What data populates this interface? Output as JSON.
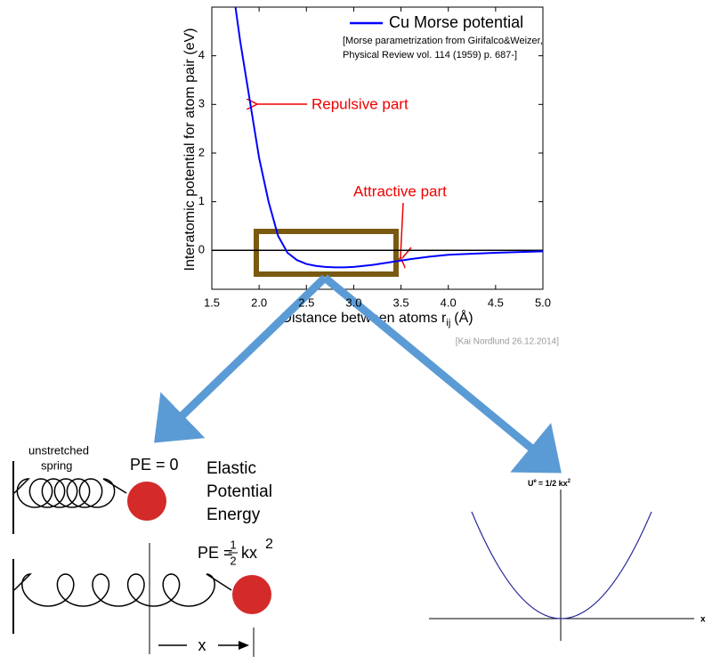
{
  "chart_data": {
    "type": "line",
    "xlabel": "Distance between atoms r",
    "xlabel_subscript": "ij",
    "xlabel_unit": "(Å)",
    "ylabel": "Interatomic potential for atom pair (eV)",
    "x": [
      1.75,
      1.8,
      1.9,
      2.0,
      2.1,
      2.2,
      2.3,
      2.4,
      2.5,
      2.6,
      2.7,
      2.8,
      2.9,
      3.0,
      3.2,
      3.4,
      3.6,
      3.8,
      4.0,
      4.5,
      5.0
    ],
    "series": [
      {
        "name": "Cu Morse potential",
        "color": "#0000ff",
        "values": [
          5.0,
          4.3,
          3.1,
          1.9,
          1.0,
          0.3,
          -0.05,
          -0.2,
          -0.28,
          -0.32,
          -0.34,
          -0.35,
          -0.35,
          -0.34,
          -0.3,
          -0.24,
          -0.18,
          -0.13,
          -0.09,
          -0.05,
          -0.02
        ]
      }
    ],
    "reference": [
      "[Morse parametrization from Girifalco&Weizer,",
      "Physical Review vol. 114 (1959) p. 687-]"
    ],
    "credit": "[Kai Nordlund 26.12.2014]",
    "annotations": [
      "Repulsive part",
      "Attractive part"
    ],
    "hline": 0,
    "xlim": [
      1.5,
      5.0
    ],
    "ylim": [
      -0.8,
      5.0
    ],
    "xticks": [
      1.5,
      {
        "value": 2,
        "label": "2.0"
      },
      2.5,
      {
        "value": 3,
        "label": "3.0"
      },
      3.5,
      {
        "value": 4,
        "label": "4.0"
      },
      4.5,
      {
        "value": 5,
        "label": "5.0"
      }
    ],
    "yticks": [
      0,
      1,
      2,
      3,
      4
    ]
  },
  "spring": {
    "unstretched": [
      "unstretched",
      "spring"
    ],
    "pe_zero": "PE = 0",
    "title": [
      "Elastic",
      "Potential",
      "Energy"
    ],
    "pe": "PE =",
    "num": "1",
    "den": "2",
    "kx": "kx",
    "exp": "2",
    "x": "x"
  },
  "parabola": {
    "u": "U",
    "sup": "e",
    "rest": "= 1/2 kx",
    "exp": "2",
    "x": "x"
  }
}
